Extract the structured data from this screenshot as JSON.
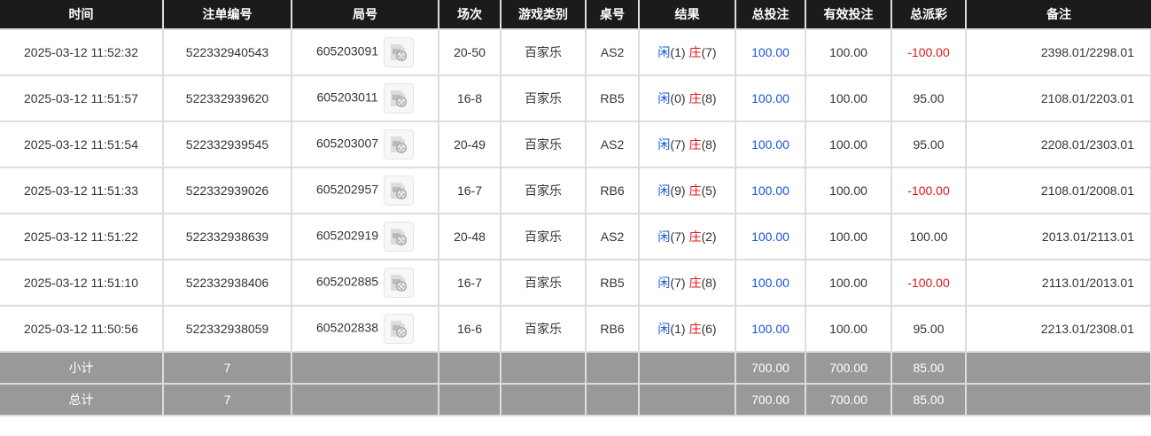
{
  "headers": [
    "时间",
    "注单编号",
    "局号",
    "场次",
    "游戏类别",
    "桌号",
    "结果",
    "总投注",
    "有效投注",
    "总派彩",
    "备注"
  ],
  "colors": {
    "header_bg": "#1b1b1b",
    "player": "#1a56d6",
    "banker": "#e0151b",
    "negative": "#e0151b",
    "bet": "#1a56d6",
    "footer_bg": "#999999"
  },
  "rows": [
    {
      "time": "2025-03-12 11:52:32",
      "order": "522332940543",
      "round": "605203091",
      "shoe": "20-50",
      "game": "百家乐",
      "table": "AS2",
      "player_label": "闲",
      "player_score": "(1)",
      "banker_label": "庄",
      "banker_score": "(7)",
      "bet": "100.00",
      "valid": "100.00",
      "payout": "-100.00",
      "remark": "2398.01/2298.01"
    },
    {
      "time": "2025-03-12 11:51:57",
      "order": "522332939620",
      "round": "605203011",
      "shoe": "16-8",
      "game": "百家乐",
      "table": "RB5",
      "player_label": "闲",
      "player_score": "(0)",
      "banker_label": "庄",
      "banker_score": "(8)",
      "bet": "100.00",
      "valid": "100.00",
      "payout": "95.00",
      "remark": "2108.01/2203.01"
    },
    {
      "time": "2025-03-12 11:51:54",
      "order": "522332939545",
      "round": "605203007",
      "shoe": "20-49",
      "game": "百家乐",
      "table": "AS2",
      "player_label": "闲",
      "player_score": "(7)",
      "banker_label": "庄",
      "banker_score": "(8)",
      "bet": "100.00",
      "valid": "100.00",
      "payout": "95.00",
      "remark": "2208.01/2303.01"
    },
    {
      "time": "2025-03-12 11:51:33",
      "order": "522332939026",
      "round": "605202957",
      "shoe": "16-7",
      "game": "百家乐",
      "table": "RB6",
      "player_label": "闲",
      "player_score": "(9)",
      "banker_label": "庄",
      "banker_score": "(5)",
      "bet": "100.00",
      "valid": "100.00",
      "payout": "-100.00",
      "remark": "2108.01/2008.01"
    },
    {
      "time": "2025-03-12 11:51:22",
      "order": "522332938639",
      "round": "605202919",
      "shoe": "20-48",
      "game": "百家乐",
      "table": "AS2",
      "player_label": "闲",
      "player_score": "(7)",
      "banker_label": "庄",
      "banker_score": "(2)",
      "bet": "100.00",
      "valid": "100.00",
      "payout": "100.00",
      "remark": "2013.01/2113.01"
    },
    {
      "time": "2025-03-12 11:51:10",
      "order": "522332938406",
      "round": "605202885",
      "shoe": "16-7",
      "game": "百家乐",
      "table": "RB5",
      "player_label": "闲",
      "player_score": "(7)",
      "banker_label": "庄",
      "banker_score": "(8)",
      "bet": "100.00",
      "valid": "100.00",
      "payout": "-100.00",
      "remark": "2113.01/2013.01"
    },
    {
      "time": "2025-03-12 11:50:56",
      "order": "522332938059",
      "round": "605202838",
      "shoe": "16-6",
      "game": "百家乐",
      "table": "RB6",
      "player_label": "闲",
      "player_score": "(1)",
      "banker_label": "庄",
      "banker_score": "(6)",
      "bet": "100.00",
      "valid": "100.00",
      "payout": "95.00",
      "remark": "2213.01/2308.01"
    }
  ],
  "subtotal": {
    "label": "小计",
    "count": "7",
    "bet": "700.00",
    "valid": "700.00",
    "payout": "85.00"
  },
  "total": {
    "label": "总计",
    "count": "7",
    "bet": "700.00",
    "valid": "700.00",
    "payout": "85.00"
  }
}
